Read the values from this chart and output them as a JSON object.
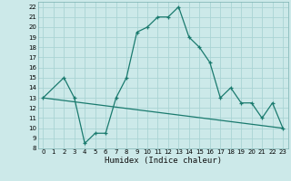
{
  "title": "",
  "xlabel": "Humidex (Indice chaleur)",
  "ylabel": "",
  "bg_color": "#cce9e9",
  "line_color": "#1a7a6e",
  "grid_color": "#aad4d4",
  "xlim": [
    -0.5,
    23.5
  ],
  "ylim": [
    8,
    22.5
  ],
  "xticks": [
    0,
    1,
    2,
    3,
    4,
    5,
    6,
    7,
    8,
    9,
    10,
    11,
    12,
    13,
    14,
    15,
    16,
    17,
    18,
    19,
    20,
    21,
    22,
    23
  ],
  "yticks": [
    8,
    9,
    10,
    11,
    12,
    13,
    14,
    15,
    16,
    17,
    18,
    19,
    20,
    21,
    22
  ],
  "curve1_x": [
    0,
    2,
    3,
    4,
    5,
    6,
    7,
    8,
    9,
    10,
    11,
    12,
    13,
    14,
    15,
    16,
    17,
    18,
    19,
    20,
    21,
    22,
    23
  ],
  "curve1_y": [
    13,
    15,
    13,
    8.5,
    9.5,
    9.5,
    13,
    15,
    19.5,
    20,
    21,
    21,
    22,
    19,
    18,
    16.5,
    13,
    14,
    12.5,
    12.5,
    11,
    12.5,
    10
  ],
  "curve2_x": [
    0,
    23
  ],
  "curve2_y": [
    13,
    10
  ],
  "marker_size": 3.5,
  "line_width": 0.9,
  "tick_fontsize": 5.0,
  "xlabel_fontsize": 6.5
}
